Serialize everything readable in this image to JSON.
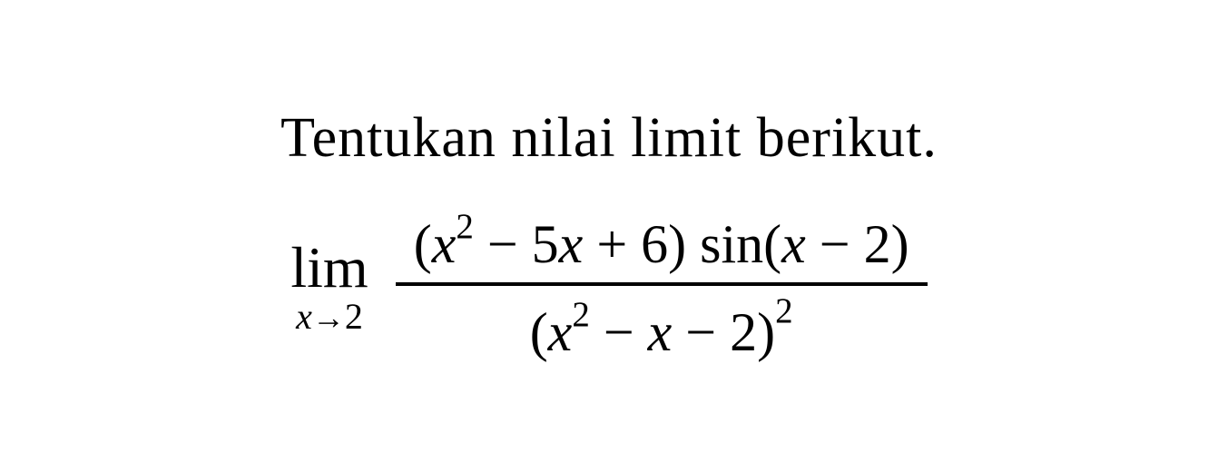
{
  "title": "Tentukan nilai limit berikut.",
  "expression": {
    "limit_label": "lim",
    "limit_variable": "x",
    "limit_arrow": "→",
    "limit_value": "2",
    "numerator": {
      "open_paren": "(",
      "term1_var": "x",
      "term1_exp": "2",
      "term2": " − 5",
      "term2_var": "x",
      "term3": " + 6",
      "close_paren": ")",
      "trig": " sin",
      "trig_open": "(",
      "trig_var": "x",
      "trig_minus": " − 2",
      "trig_close": ")"
    },
    "denominator": {
      "open_paren": "(",
      "term1_var": "x",
      "term1_exp": "2",
      "term2": " − ",
      "term2_var": "x",
      "term3": " − 2",
      "close_paren": ")",
      "outer_exp": "2"
    }
  },
  "colors": {
    "text": "#000000",
    "background": "#ffffff"
  },
  "fonts": {
    "family": "Times New Roman, serif",
    "title_size_pt": 46,
    "math_size_pt": 44
  }
}
